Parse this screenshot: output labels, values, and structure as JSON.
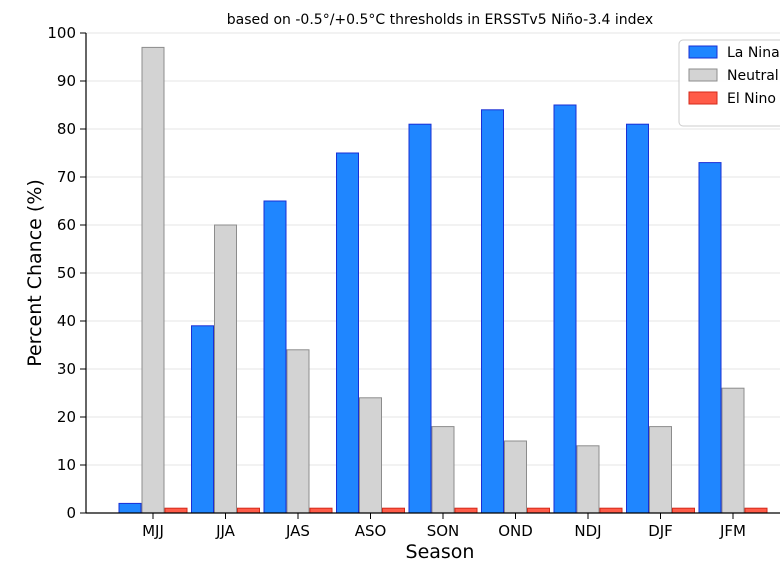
{
  "chart_data": {
    "type": "bar",
    "title": "based on -0.5°/+0.5°C thresholds in ERSSTv5 Niño-3.4 index",
    "xlabel": "Season",
    "ylabel": "Percent Chance (%)",
    "ylim": [
      0,
      100
    ],
    "yticks": [
      "0",
      "10",
      "20",
      "30",
      "40",
      "50",
      "60",
      "70",
      "80",
      "90",
      "100"
    ],
    "grid": true,
    "legend_position": "top-right",
    "categories": [
      "MJJ",
      "JJA",
      "JAS",
      "ASO",
      "SON",
      "OND",
      "NDJ",
      "DJF",
      "JFM"
    ],
    "series": [
      {
        "name": "La Nina",
        "color": "#1f86ff",
        "edge": "#1a2fd6",
        "values": [
          2,
          39,
          65,
          75,
          81,
          84,
          85,
          81,
          73
        ]
      },
      {
        "name": "Neutral",
        "color": "#d3d3d3",
        "edge": "#8c8c8c",
        "values": [
          97,
          60,
          34,
          24,
          18,
          15,
          14,
          18,
          26
        ]
      },
      {
        "name": "El Nino",
        "color": "#ff5b48",
        "edge": "#d42a1a",
        "values": [
          1,
          1,
          1,
          1,
          1,
          1,
          1,
          1,
          1
        ]
      }
    ]
  }
}
